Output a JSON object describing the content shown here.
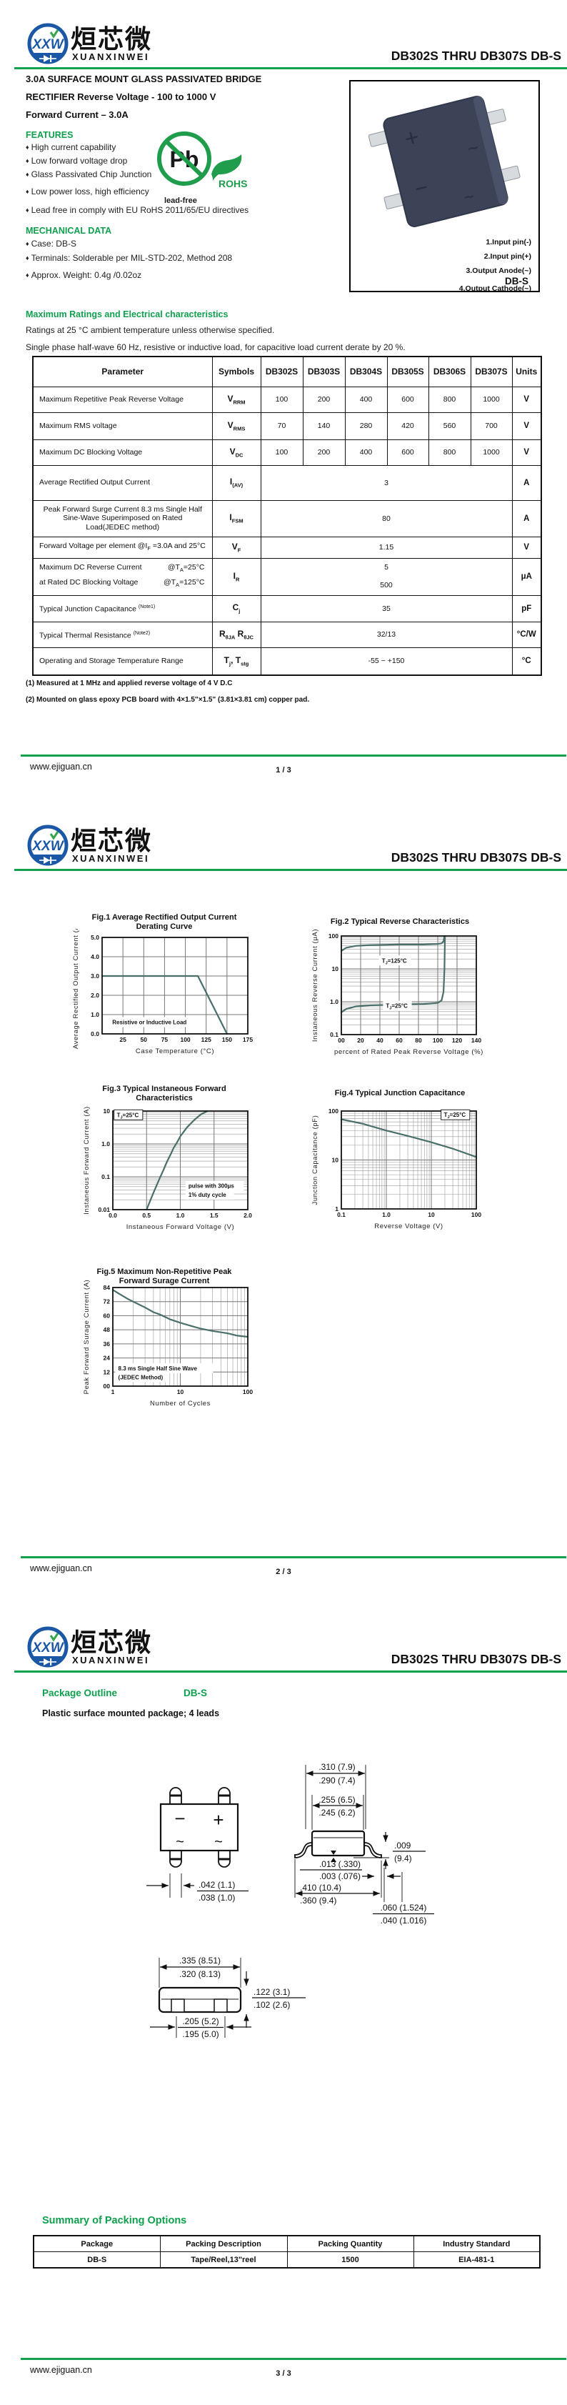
{
  "header": {
    "logo_text": "XXW",
    "brand_cn": "烜芯微",
    "brand_en": "XUANXINWEI",
    "part_title": "DB302S THRU DB307S  DB-S",
    "accent_green": "#12A14C"
  },
  "page1": {
    "headline": [
      "3.0A SURFACE MOUNT GLASS PASSIVATED BRIDGE",
      "RECTIFIER Reverse Voltage - 100 to 1000 V",
      "Forward Current – 3.0A"
    ],
    "features": {
      "title": "FEATURES",
      "items": [
        "High current capability",
        "Low forward voltage drop",
        "Glass Passivated Chip Junction",
        "Low power loss, high efficiency",
        "Lead free in comply with EU RoHS 2011/65/EU directives"
      ]
    },
    "mechanical": {
      "title": "MECHANICAL DATA",
      "items": [
        "Case: DB-S",
        "Terminals: Solderable per MIL-STD-202,  Method 208",
        "Approx. Weight: 0.4g /0.02oz"
      ]
    },
    "pbfree": {
      "pb": "Pb",
      "rohs": "ROHS",
      "leadfree": "lead-free"
    },
    "package_box": {
      "pins": [
        "1.Input pin(-)",
        "2.Input pin(+)",
        "3.Output Anode(~)",
        "4.Output Cathode(~)"
      ],
      "name": "DB-S"
    },
    "ratings": {
      "title": "Maximum Ratings and Electrical characteristics",
      "line1": "Ratings at 25 °C ambient temperature unless otherwise specified.",
      "line2": "Single phase half-wave 60 Hz, resistive or inductive load, for capacitive load current derate by 20 %."
    },
    "table": {
      "headers": [
        "Parameter",
        "Symbols",
        "DB302S",
        "DB303S",
        "DB304S",
        "DB305S",
        "DB306S",
        "DB307S",
        "Units"
      ],
      "rows": [
        {
          "param": "Maximum Repetitive Peak Reverse Voltage",
          "sym": "V_RRM_",
          "values": [
            "100",
            "200",
            "400",
            "600",
            "800",
            "1000"
          ],
          "unit": "V"
        },
        {
          "param": "Maximum RMS voltage",
          "sym": "V_RMS_",
          "values": [
            "70",
            "140",
            "280",
            "420",
            "560",
            "700"
          ],
          "unit": "V"
        },
        {
          "param": "Maximum DC Blocking Voltage",
          "sym": "V_DC_",
          "values": [
            "100",
            "200",
            "400",
            "600",
            "800",
            "1000"
          ],
          "unit": "V"
        },
        {
          "param": "Average Rectified Output Current",
          "sym": "I_(AV)_",
          "span": "3",
          "unit": "A"
        },
        {
          "param": "Peak Forward Surge Current 8.3 ms Single Half Sine-Wave Superimposed on Rated Load(JEDEC method)",
          "sym": "I_FSM_",
          "span": "80",
          "unit": "A",
          "center": true
        },
        {
          "param": "Forward Voltage per element  @I_F_ =3.0A and 25°C",
          "sym": "V_F_",
          "span": "1.15",
          "unit": "V"
        },
        {
          "cond_rows": [
            [
              "Maximum DC Reverse Current",
              "@T_A_=25°C"
            ],
            [
              "at Rated DC Blocking Voltage",
              "@T_A_=125°C"
            ]
          ],
          "sym": "I_R_",
          "span2": [
            "5",
            "500"
          ],
          "unit": "μA"
        },
        {
          "param": "Typical Junction Capacitance ^(Note1)^",
          "sym": "C_j_",
          "span": "35",
          "unit": "pF"
        },
        {
          "param": "Typical Thermal Resistance ^(Note2)^",
          "sym": "R_θJA_ R_θJC_",
          "span": "32/13",
          "unit": "°C/W"
        },
        {
          "param": "Operating and Storage Temperature Range",
          "sym": "T_j_, T_stg_",
          "span": "-55 ~ +150",
          "unit": "°C"
        }
      ]
    },
    "notes": [
      "(1) Measured at 1 MHz and applied reverse voltage of 4 V D.C",
      "(2) Mounted on glass epoxy PCB board with 4×1.5\"×1.5\"  (3.81×3.81 cm)  copper pad."
    ]
  },
  "page3": {
    "outline_title": "Package Outline",
    "outline_pkg": "DB-S",
    "outline_sub": "Plastic surface mounted package; 4 leads",
    "dims": {
      "top_lead": [
        ".042 (1.1)",
        ".038 (1.0)"
      ],
      "body_w": [
        ".310 (7.9)",
        ".290 (7.4)"
      ],
      "body_inner": [
        ".255 (6.5)",
        ".245 (6.2)"
      ],
      "standoff": [
        ".013 (.330)",
        ".003 (.076)"
      ],
      "span": [
        ".410 (10.4)",
        ".360 (9.4)"
      ],
      "lead_t": [
        ".009",
        "(9.4)"
      ],
      "foot": [
        ".060 (1.524)",
        ".040 (1.016)"
      ],
      "end_w": [
        ".335 (8.51)",
        ".320 (8.13)"
      ],
      "end_h": [
        ".122 (3.1)",
        ".102 (2.6)"
      ],
      "end_body": [
        ".205 (5.2)",
        ".195 (5.0)"
      ]
    },
    "packing": {
      "title": "Summary of Packing Options",
      "headers": [
        "Package",
        "Packing Description",
        "Packing Quantity",
        "Industry Standard"
      ],
      "rows": [
        [
          "DB-S",
          "Tape/Reel,13\"reel",
          "1500",
          "EIA-481-1"
        ]
      ]
    }
  },
  "footer": {
    "site": "www.ejiguan.cn",
    "pages": [
      "1 / 3",
      "2 / 3",
      "3 / 3"
    ]
  },
  "chart_data": [
    {
      "id": "fig1",
      "type": "line",
      "title": "Fig.1  Average Rectified Output Current",
      "subtitle": "Derating Curve",
      "xlabel": "Case Temperature (°C)",
      "ylabel": "Average Rectified Output Current (A)",
      "xscale": "linear",
      "yscale": "linear",
      "xlim": [
        0,
        175
      ],
      "ylim": [
        0,
        5
      ],
      "xticks": [
        {
          "v": 25,
          "l": "25"
        },
        {
          "v": 50,
          "l": "50"
        },
        {
          "v": 75,
          "l": "75"
        },
        {
          "v": 100,
          "l": "100"
        },
        {
          "v": 125,
          "l": "125"
        },
        {
          "v": 150,
          "l": "150"
        },
        {
          "v": 175,
          "l": "175"
        }
      ],
      "yticks": [
        {
          "v": 0,
          "l": "0.0"
        },
        {
          "v": 1,
          "l": "1.0"
        },
        {
          "v": 2,
          "l": "2.0"
        },
        {
          "v": 3,
          "l": "3.0"
        },
        {
          "v": 4,
          "l": "4.0"
        },
        {
          "v": 5,
          "l": "5.0"
        }
      ],
      "line_color": "#4a6f6a",
      "series": [
        {
          "name": "derating",
          "points": [
            [
              0,
              3
            ],
            [
              115,
              3
            ],
            [
              150,
              0
            ]
          ]
        }
      ],
      "annotations": [
        {
          "text": "Resistive or Inductive Load",
          "fx": 0.07,
          "fy": 0.9,
          "box": "plain"
        }
      ]
    },
    {
      "id": "fig2",
      "type": "line",
      "title": "Fig.2  Typical Reverse Characteristics",
      "xlabel": "percent of Rated Peak Reverse Voltage (%)",
      "ylabel": "Instaneous Reverse Current (μA)",
      "xscale": "linear",
      "yscale": "log",
      "xlim": [
        0,
        140
      ],
      "ylim": [
        0.1,
        100
      ],
      "xticks": [
        {
          "v": 0,
          "l": "00"
        },
        {
          "v": 20,
          "l": "20"
        },
        {
          "v": 40,
          "l": "40"
        },
        {
          "v": 60,
          "l": "60"
        },
        {
          "v": 80,
          "l": "80"
        },
        {
          "v": 100,
          "l": "100"
        },
        {
          "v": 120,
          "l": "120"
        },
        {
          "v": 140,
          "l": "140"
        }
      ],
      "yticks": [
        {
          "v": 100,
          "l": "100"
        },
        {
          "v": 10,
          "l": "10"
        },
        {
          "v": 1,
          "l": "1.0"
        },
        {
          "v": 0.1,
          "l": "0.1"
        }
      ],
      "line_color": "#4a6f6a",
      "series": [
        {
          "name": "TJ=125°C",
          "points": [
            [
              0,
              35
            ],
            [
              5,
              44
            ],
            [
              15,
              50
            ],
            [
              30,
              53
            ],
            [
              60,
              55
            ],
            [
              85,
              55
            ],
            [
              100,
              57
            ],
            [
              104,
              60
            ],
            [
              106,
              68
            ],
            [
              107,
              100
            ]
          ]
        },
        {
          "name": "TJ=25°C",
          "points": [
            [
              0,
              0.48
            ],
            [
              5,
              0.6
            ],
            [
              15,
              0.72
            ],
            [
              30,
              0.78
            ],
            [
              60,
              0.82
            ],
            [
              85,
              0.85
            ],
            [
              100,
              0.92
            ],
            [
              104,
              1.1
            ],
            [
              106,
              2
            ],
            [
              107,
              10
            ],
            [
              107.5,
              100
            ]
          ]
        }
      ],
      "annotations": [
        {
          "text": "T_J_=125°C",
          "fx": 0.3,
          "fy": 0.27,
          "box": "plain"
        },
        {
          "text": "T_J_=25°C",
          "fx": 0.33,
          "fy": 0.73,
          "box": "plain"
        }
      ]
    },
    {
      "id": "fig3",
      "type": "line",
      "title": "Fig.3  Typical Instaneous Forward",
      "subtitle": "Characteristics",
      "xlabel": "Instaneous Forward Voltage (V)",
      "ylabel": "Instaneous Forward Current (A)",
      "xscale": "linear",
      "yscale": "log",
      "xlim": [
        0,
        2
      ],
      "ylim": [
        0.01,
        10
      ],
      "xticks": [
        {
          "v": 0,
          "l": "0.0"
        },
        {
          "v": 0.5,
          "l": "0.5"
        },
        {
          "v": 1,
          "l": "1.0"
        },
        {
          "v": 1.5,
          "l": "1.5"
        },
        {
          "v": 2,
          "l": "2.0"
        }
      ],
      "yticks": [
        {
          "v": 10,
          "l": "10"
        },
        {
          "v": 1,
          "l": "1.0"
        },
        {
          "v": 0.1,
          "l": "0.1"
        },
        {
          "v": 0.01,
          "l": "0.01"
        }
      ],
      "line_color": "#4a6f6a",
      "series": [
        {
          "name": "VF",
          "points": [
            [
              0.5,
              0.01
            ],
            [
              0.55,
              0.018
            ],
            [
              0.6,
              0.032
            ],
            [
              0.65,
              0.055
            ],
            [
              0.7,
              0.095
            ],
            [
              0.75,
              0.16
            ],
            [
              0.8,
              0.28
            ],
            [
              0.85,
              0.45
            ],
            [
              0.9,
              0.75
            ],
            [
              0.95,
              1.1
            ],
            [
              1.0,
              1.7
            ],
            [
              1.1,
              3.2
            ],
            [
              1.2,
              5.2
            ],
            [
              1.3,
              7.8
            ],
            [
              1.4,
              10
            ]
          ]
        }
      ],
      "annotations": [
        {
          "text": "T_J_=25°C",
          "fx": 0.03,
          "fy": 0.06,
          "box": "solid"
        },
        {
          "text": "pulse with 300μs",
          "fx": 0.56,
          "fy": 0.78,
          "box": "plain"
        },
        {
          "text": "1% duty cycle",
          "fx": 0.56,
          "fy": 0.87,
          "box": "plain"
        }
      ]
    },
    {
      "id": "fig4",
      "type": "line",
      "title": "Fig.4  Typical Junction Capacitance",
      "xlabel": "Reverse  Voltage (V)",
      "ylabel": "Junction Capacitance (pF)",
      "xscale": "log",
      "yscale": "log",
      "xlim": [
        0.1,
        100
      ],
      "ylim": [
        1,
        100
      ],
      "xticks": [
        {
          "v": 0.1,
          "l": "0.1"
        },
        {
          "v": 1,
          "l": "1.0"
        },
        {
          "v": 10,
          "l": "10"
        },
        {
          "v": 100,
          "l": "100"
        }
      ],
      "yticks": [
        {
          "v": 1,
          "l": "1"
        },
        {
          "v": 10,
          "l": "10"
        },
        {
          "v": 100,
          "l": "100"
        }
      ],
      "line_color": "#4a6f6a",
      "series": [
        {
          "name": "Cj",
          "points": [
            [
              0.1,
              68
            ],
            [
              0.3,
              55
            ],
            [
              1,
              40
            ],
            [
              3,
              31
            ],
            [
              10,
              23
            ],
            [
              30,
              17
            ],
            [
              100,
              11.5
            ]
          ]
        }
      ],
      "annotations": [
        {
          "text": "T_J_=25°C",
          "fx": 0.76,
          "fy": 0.06,
          "box": "solid"
        }
      ]
    },
    {
      "id": "fig5",
      "type": "line",
      "title": "Fig.5  Maximum Non-Repetitive Peak",
      "subtitle": "Forward Surage Current",
      "xlabel": "Number of Cycles",
      "ylabel": "Peak Forward Surage Current (A)",
      "xscale": "log",
      "yscale": "linear",
      "xlim": [
        1,
        100
      ],
      "ylim": [
        0,
        84
      ],
      "xticks": [
        {
          "v": 1,
          "l": "1"
        },
        {
          "v": 10,
          "l": "10"
        },
        {
          "v": 100,
          "l": "100"
        }
      ],
      "yticks": [
        {
          "v": 0,
          "l": "00"
        },
        {
          "v": 12,
          "l": "12"
        },
        {
          "v": 24,
          "l": "24"
        },
        {
          "v": 36,
          "l": "36"
        },
        {
          "v": 48,
          "l": "48"
        },
        {
          "v": 60,
          "l": "60"
        },
        {
          "v": 72,
          "l": "72"
        },
        {
          "v": 84,
          "l": "84"
        }
      ],
      "line_color": "#4a6f6a",
      "series": [
        {
          "name": "IFSM",
          "points": [
            [
              1,
              82
            ],
            [
              1.3,
              78
            ],
            [
              1.7,
              74
            ],
            [
              2,
              72
            ],
            [
              3,
              67
            ],
            [
              4,
              63
            ],
            [
              5,
              61
            ],
            [
              7,
              57
            ],
            [
              10,
              54
            ],
            [
              15,
              51
            ],
            [
              20,
              49
            ],
            [
              30,
              47
            ],
            [
              50,
              45
            ],
            [
              70,
              43
            ],
            [
              100,
              42
            ]
          ]
        }
      ],
      "annotations": [
        {
          "text": "8.3 ms Single Half Sine Wave",
          "fx": 0.04,
          "fy": 0.84,
          "box": "plain"
        },
        {
          "text": "(JEDEC Method)",
          "fx": 0.04,
          "fy": 0.93,
          "box": "plain"
        }
      ]
    }
  ]
}
